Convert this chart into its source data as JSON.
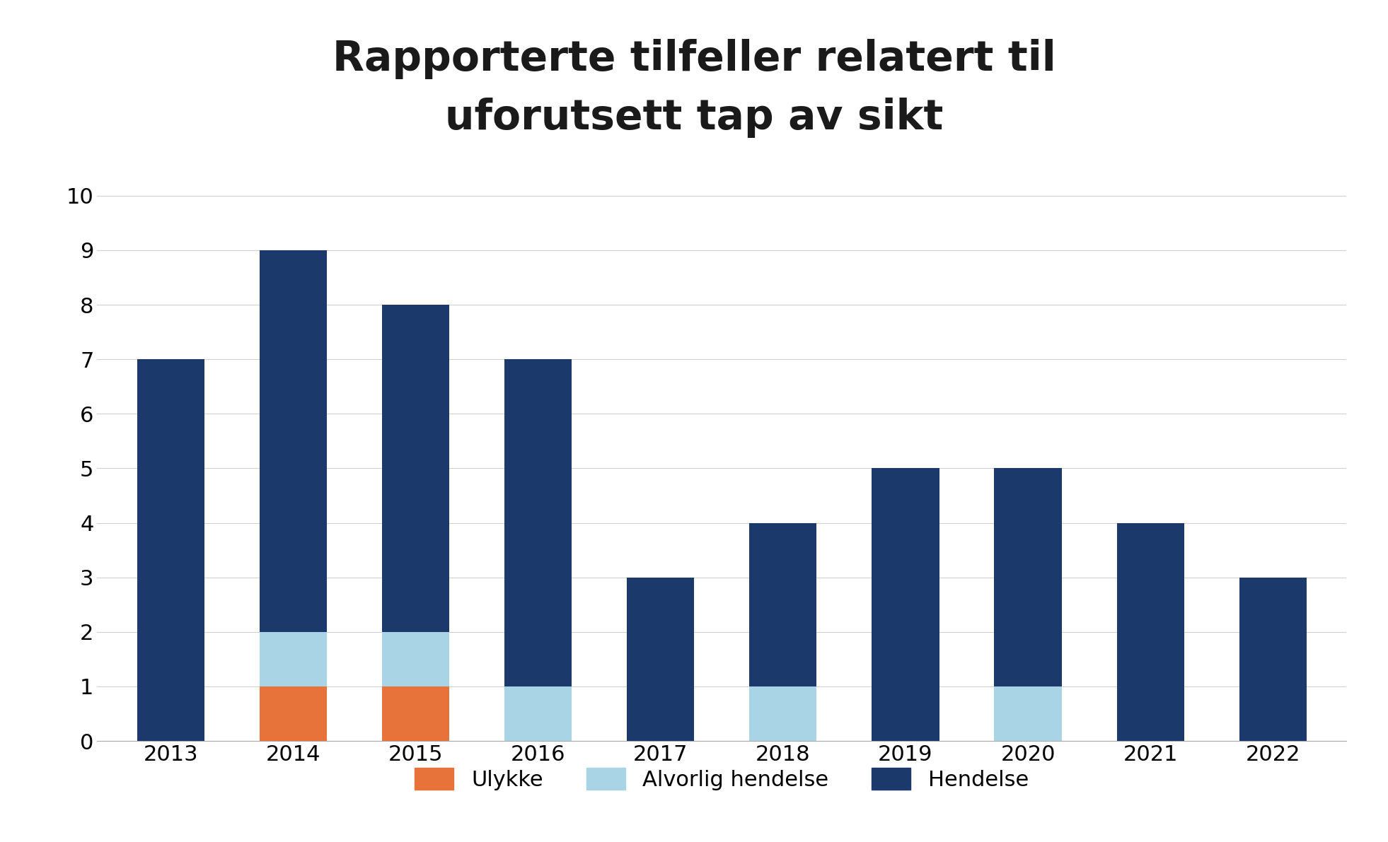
{
  "years": [
    "2013",
    "2014",
    "2015",
    "2016",
    "2017",
    "2018",
    "2019",
    "2020",
    "2021",
    "2022"
  ],
  "ulykke": [
    0,
    1,
    1,
    0,
    0,
    0,
    0,
    0,
    0,
    0
  ],
  "alvorlig_hendelse": [
    0,
    1,
    1,
    1,
    0,
    1,
    0,
    1,
    0,
    0
  ],
  "hendelse": [
    7,
    7,
    6,
    6,
    3,
    3,
    5,
    4,
    4,
    3
  ],
  "color_ulykke": "#E8733A",
  "color_alvorlig": "#A8D4E6",
  "color_hendelse": "#1B3A6B",
  "title_line1": "Rapporterte tilfeller relatert til",
  "title_line2": "uforutsett tap av sikt",
  "ylim": [
    0,
    10.5
  ],
  "yticks": [
    0,
    1,
    2,
    3,
    4,
    5,
    6,
    7,
    8,
    9,
    10
  ],
  "legend_ulykke": "Ulykke",
  "legend_alvorlig": "Alvorlig hendelse",
  "legend_hendelse": "Hendelse",
  "title_fontsize": 42,
  "tick_fontsize": 22,
  "legend_fontsize": 22,
  "bar_width": 0.55,
  "background_color": "#ffffff",
  "grid_color": "#d0d0d0",
  "spine_color": "#aaaaaa",
  "text_color": "#1a1a1a"
}
